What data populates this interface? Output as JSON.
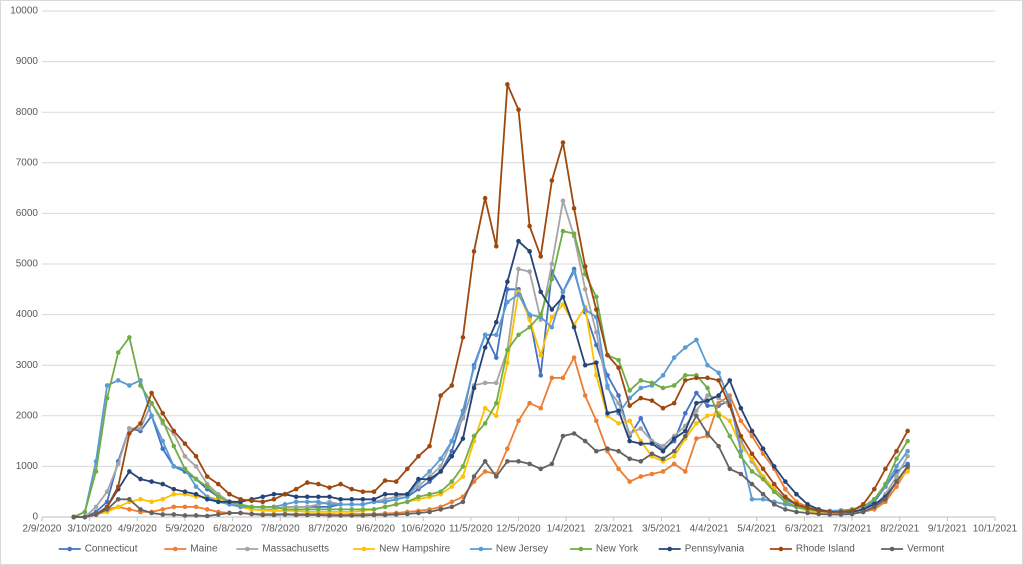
{
  "chart_data": {
    "type": "line",
    "x": [
      "2/29/2020",
      "3/7/2020",
      "3/14/2020",
      "3/21/2020",
      "3/28/2020",
      "4/4/2020",
      "4/11/2020",
      "4/18/2020",
      "4/25/2020",
      "5/2/2020",
      "5/9/2020",
      "5/16/2020",
      "5/23/2020",
      "5/30/2020",
      "6/6/2020",
      "6/13/2020",
      "6/20/2020",
      "6/27/2020",
      "7/4/2020",
      "7/11/2020",
      "7/18/2020",
      "7/25/2020",
      "8/1/2020",
      "8/8/2020",
      "8/15/2020",
      "8/22/2020",
      "8/29/2020",
      "9/5/2020",
      "9/12/2020",
      "9/19/2020",
      "9/26/2020",
      "10/3/2020",
      "10/10/2020",
      "10/17/2020",
      "10/24/2020",
      "10/31/2020",
      "11/7/2020",
      "11/14/2020",
      "11/21/2020",
      "11/28/2020",
      "12/5/2020",
      "12/12/2020",
      "12/19/2020",
      "12/26/2020",
      "1/2/2021",
      "1/9/2021",
      "1/16/2021",
      "1/23/2021",
      "1/30/2021",
      "2/6/2021",
      "2/13/2021",
      "2/20/2021",
      "2/27/2021",
      "3/6/2021",
      "3/13/2021",
      "3/20/2021",
      "3/27/2021",
      "4/3/2021",
      "4/10/2021",
      "4/17/2021",
      "4/24/2021",
      "5/1/2021",
      "5/8/2021",
      "5/15/2021",
      "5/22/2021",
      "5/29/2021",
      "6/5/2021",
      "6/12/2021",
      "6/19/2021",
      "6/26/2021",
      "7/3/2021",
      "7/10/2021",
      "7/17/2021",
      "7/24/2021",
      "7/31/2021",
      "8/7/2021"
    ],
    "series": [
      {
        "name": "Connecticut",
        "color": "#4472c4",
        "values": [
          0,
          0,
          100,
          300,
          1100,
          1750,
          1700,
          2000,
          1350,
          1000,
          900,
          750,
          550,
          400,
          300,
          200,
          150,
          150,
          150,
          200,
          200,
          200,
          200,
          200,
          250,
          250,
          250,
          300,
          300,
          350,
          400,
          550,
          700,
          900,
          1300,
          2000,
          3000,
          3600,
          3150,
          4500,
          4500,
          3950,
          2800,
          4850,
          4450,
          4900,
          4050,
          3400,
          2800,
          2400,
          1600,
          1950,
          1500,
          1350,
          1500,
          2050,
          2450,
          2200,
          2200,
          2300,
          1500,
          1100,
          800,
          550,
          350,
          250,
          150,
          100,
          80,
          80,
          100,
          150,
          300,
          600,
          900,
          1050
        ]
      },
      {
        "name": "Maine",
        "color": "#ed7d31",
        "values": [
          0,
          0,
          50,
          150,
          200,
          150,
          100,
          100,
          150,
          200,
          200,
          200,
          150,
          100,
          80,
          80,
          60,
          60,
          60,
          60,
          60,
          60,
          60,
          60,
          50,
          60,
          60,
          60,
          70,
          80,
          100,
          120,
          150,
          200,
          300,
          400,
          700,
          900,
          850,
          1350,
          1900,
          2250,
          2150,
          2750,
          2750,
          3150,
          2400,
          1900,
          1300,
          950,
          700,
          800,
          850,
          900,
          1050,
          900,
          1550,
          1600,
          2250,
          2400,
          1900,
          1600,
          1250,
          950,
          550,
          300,
          200,
          130,
          100,
          80,
          80,
          100,
          150,
          300,
          600,
          950
        ]
      },
      {
        "name": "Massachusetts",
        "color": "#a5a5a5",
        "values": [
          0,
          0,
          200,
          500,
          1050,
          1750,
          1750,
          2250,
          1850,
          1650,
          1200,
          1000,
          650,
          450,
          300,
          200,
          150,
          150,
          150,
          200,
          200,
          200,
          250,
          300,
          250,
          250,
          250,
          300,
          350,
          400,
          450,
          600,
          800,
          1000,
          1500,
          1950,
          2600,
          2650,
          2650,
          3300,
          4900,
          4850,
          3900,
          5000,
          6250,
          5550,
          4500,
          3650,
          2550,
          2250,
          1650,
          1750,
          1500,
          1400,
          1600,
          1800,
          2100,
          2400,
          2350,
          2200,
          1500,
          1100,
          750,
          500,
          300,
          200,
          130,
          100,
          80,
          70,
          80,
          100,
          200,
          450,
          800,
          1200
        ]
      },
      {
        "name": "New Hampshire",
        "color": "#ffc000",
        "values": [
          0,
          0,
          50,
          100,
          200,
          300,
          350,
          300,
          350,
          450,
          450,
          400,
          400,
          350,
          250,
          200,
          150,
          130,
          120,
          120,
          120,
          100,
          100,
          100,
          100,
          100,
          120,
          150,
          200,
          250,
          300,
          350,
          400,
          450,
          600,
          800,
          1500,
          2150,
          2000,
          3050,
          4450,
          3900,
          3200,
          3950,
          4200,
          3800,
          4150,
          2800,
          2000,
          1850,
          1900,
          1500,
          1200,
          1100,
          1200,
          1550,
          1850,
          2000,
          2050,
          1900,
          1400,
          1150,
          800,
          550,
          300,
          200,
          120,
          80,
          60,
          50,
          60,
          100,
          200,
          350,
          700,
          900
        ]
      },
      {
        "name": "New Jersey",
        "color": "#5b9bd5",
        "values": [
          0,
          100,
          1100,
          2600,
          2700,
          2600,
          2700,
          2000,
          1500,
          1000,
          950,
          600,
          400,
          300,
          250,
          200,
          200,
          200,
          200,
          250,
          300,
          300,
          300,
          250,
          250,
          250,
          250,
          300,
          300,
          350,
          400,
          700,
          900,
          1150,
          1500,
          2100,
          2950,
          3600,
          3600,
          4250,
          4400,
          4000,
          3950,
          3750,
          4450,
          4850,
          4100,
          3950,
          2600,
          2050,
          2350,
          2550,
          2600,
          2800,
          3150,
          3350,
          3500,
          3000,
          2850,
          2300,
          1300,
          350,
          350,
          300,
          250,
          200,
          150,
          130,
          120,
          130,
          150,
          200,
          350,
          600,
          1000,
          1300
        ]
      },
      {
        "name": "New York",
        "color": "#70ad47",
        "values": [
          0,
          100,
          900,
          2350,
          3250,
          3550,
          2600,
          2250,
          1900,
          1400,
          950,
          750,
          600,
          400,
          300,
          250,
          200,
          200,
          200,
          150,
          150,
          150,
          150,
          150,
          150,
          150,
          150,
          150,
          200,
          250,
          300,
          400,
          450,
          500,
          700,
          1000,
          1600,
          1850,
          2250,
          3300,
          3600,
          3750,
          4000,
          4700,
          5650,
          5600,
          4800,
          4350,
          3200,
          3100,
          2500,
          2700,
          2650,
          2550,
          2600,
          2800,
          2800,
          2550,
          2000,
          1600,
          1200,
          900,
          750,
          500,
          300,
          200,
          150,
          120,
          100,
          100,
          150,
          200,
          350,
          650,
          1150,
          1500
        ]
      },
      {
        "name": "Pennsylvania",
        "color": "#264478",
        "values": [
          0,
          0,
          50,
          200,
          550,
          900,
          750,
          700,
          650,
          550,
          500,
          450,
          350,
          300,
          300,
          300,
          350,
          400,
          450,
          450,
          400,
          400,
          400,
          400,
          350,
          350,
          350,
          350,
          450,
          450,
          450,
          750,
          750,
          900,
          1200,
          1550,
          2550,
          3350,
          3850,
          4650,
          5450,
          5250,
          4450,
          4100,
          4350,
          3750,
          3000,
          3050,
          2050,
          2100,
          1500,
          1450,
          1450,
          1300,
          1550,
          1700,
          2250,
          2300,
          2400,
          2700,
          2150,
          1700,
          1350,
          1000,
          700,
          450,
          250,
          150,
          100,
          100,
          100,
          150,
          250,
          400,
          700,
          1000
        ]
      },
      {
        "name": "Rhode Island",
        "color": "#9e480e",
        "values": [
          0,
          0,
          50,
          200,
          600,
          1650,
          1850,
          2450,
          2050,
          1700,
          1450,
          1200,
          800,
          650,
          450,
          350,
          320,
          300,
          350,
          450,
          550,
          680,
          650,
          580,
          650,
          550,
          500,
          500,
          720,
          700,
          950,
          1200,
          1400,
          2400,
          2600,
          3550,
          5250,
          6300,
          5350,
          8550,
          8050,
          5750,
          5150,
          6650,
          7400,
          6100,
          4950,
          4100,
          3200,
          2950,
          2200,
          2350,
          2300,
          2150,
          2250,
          2700,
          2750,
          2750,
          2700,
          2200,
          1600,
          1250,
          950,
          650,
          400,
          250,
          180,
          120,
          100,
          100,
          120,
          250,
          550,
          950,
          1300,
          1700
        ]
      },
      {
        "name": "Vermont",
        "color": "#636363",
        "values": [
          0,
          0,
          50,
          150,
          350,
          350,
          150,
          80,
          50,
          50,
          30,
          30,
          20,
          50,
          80,
          80,
          60,
          40,
          40,
          50,
          40,
          40,
          40,
          30,
          30,
          30,
          30,
          40,
          40,
          50,
          60,
          80,
          100,
          150,
          200,
          300,
          800,
          1100,
          800,
          1100,
          1100,
          1050,
          950,
          1050,
          1600,
          1650,
          1500,
          1300,
          1350,
          1300,
          1150,
          1100,
          1250,
          1150,
          1300,
          1600,
          2000,
          1650,
          1400,
          950,
          850,
          650,
          450,
          250,
          150,
          100,
          80,
          60,
          50,
          50,
          60,
          100,
          200,
          350,
          700,
          1000
        ]
      }
    ],
    "xlim": [
      "2/9/2020",
      "10/1/2021"
    ],
    "xticks": [
      "2/9/2020",
      "3/10/2020",
      "4/9/2020",
      "5/9/2020",
      "6/8/2020",
      "7/8/2020",
      "8/7/2020",
      "9/6/2020",
      "10/6/2020",
      "11/5/2020",
      "12/5/2020",
      "1/4/2021",
      "2/3/2021",
      "3/5/2021",
      "4/4/2021",
      "5/4/2021",
      "6/3/2021",
      "7/3/2021",
      "8/2/2021",
      "9/1/2021",
      "10/1/2021"
    ],
    "ylim": [
      0,
      10000
    ],
    "yticks": [
      0,
      1000,
      2000,
      3000,
      4000,
      5000,
      6000,
      7000,
      8000,
      9000,
      10000
    ],
    "grid": true,
    "legend": "bottom"
  }
}
